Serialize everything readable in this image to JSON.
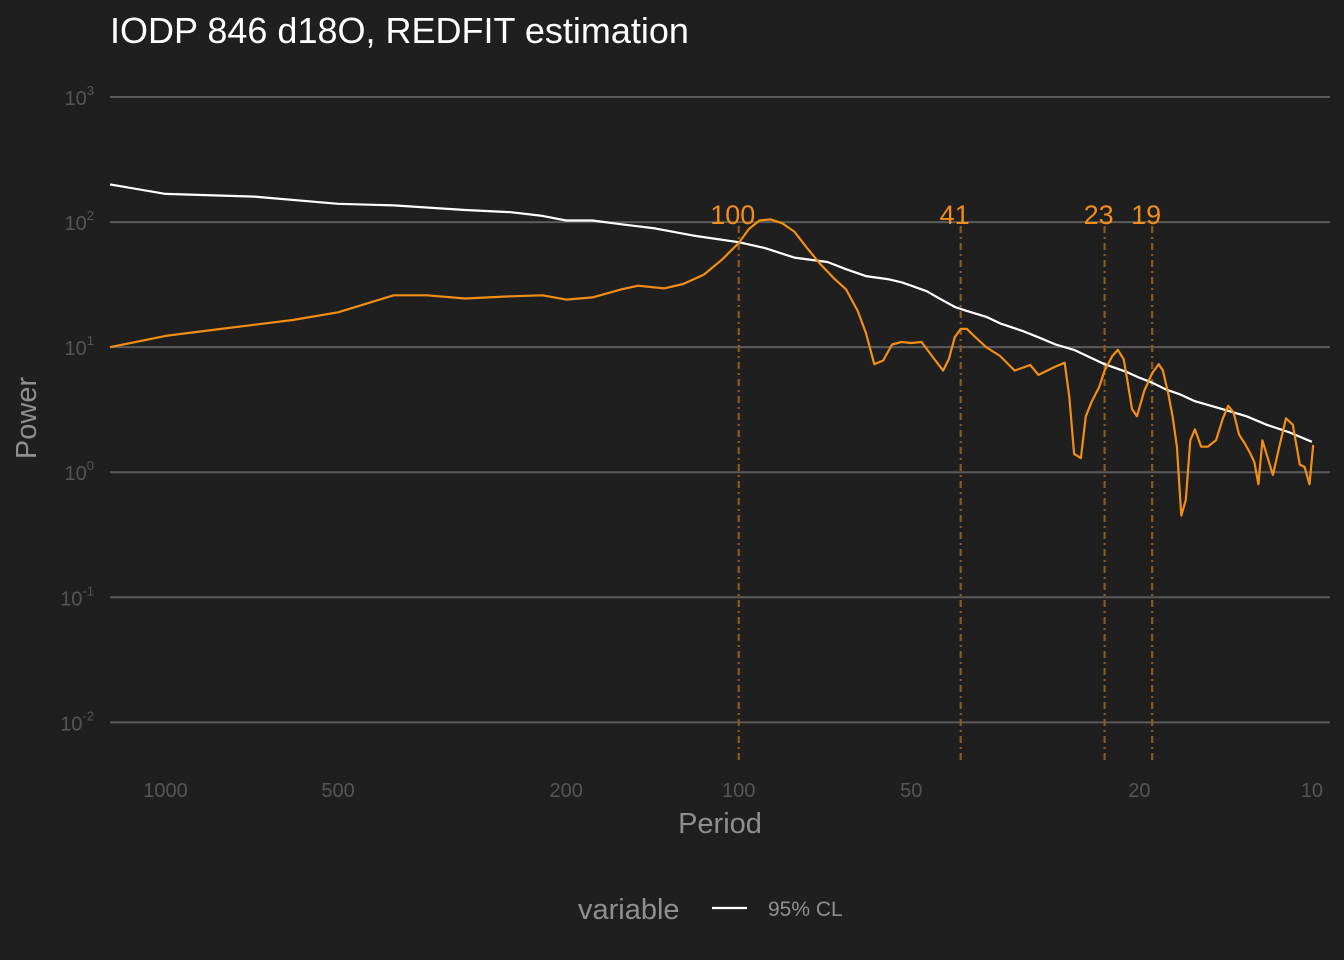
{
  "chart_data": {
    "type": "line",
    "title": "IODP 846 d18O, REDFIT estimation",
    "xlabel": "Period",
    "ylabel": "Power",
    "x_scale": "log-reversed",
    "y_scale": "log",
    "xlim": [
      1250,
      9.3
    ],
    "ylim": [
      0.005,
      1500
    ],
    "x_ticks": [
      {
        "value": 1000,
        "label": "1000"
      },
      {
        "value": 500,
        "label": "500"
      },
      {
        "value": 200,
        "label": "200"
      },
      {
        "value": 100,
        "label": "100"
      },
      {
        "value": 50,
        "label": "50"
      },
      {
        "value": 20,
        "label": "20"
      },
      {
        "value": 10,
        "label": "10"
      }
    ],
    "y_ticks": [
      {
        "value": 1000,
        "base": "10",
        "exp": "3"
      },
      {
        "value": 100,
        "base": "10",
        "exp": "2"
      },
      {
        "value": 10,
        "base": "10",
        "exp": "1"
      },
      {
        "value": 1,
        "base": "10",
        "exp": "0"
      },
      {
        "value": 0.1,
        "base": "10",
        "exp": "-1"
      },
      {
        "value": 0.01,
        "base": "10",
        "exp": "-2"
      }
    ],
    "grid": "horizontal major",
    "legend": {
      "position": "bottom",
      "title": "variable",
      "entries": [
        "95% CL"
      ]
    },
    "series": [
      {
        "name": "95% CL",
        "color": "#ffffff",
        "points": [
          [
            1250,
            200
          ],
          [
            1000,
            168
          ],
          [
            700,
            160
          ],
          [
            500,
            140
          ],
          [
            400,
            136
          ],
          [
            300,
            125
          ],
          [
            250,
            120
          ],
          [
            220,
            112
          ],
          [
            200,
            103
          ],
          [
            180,
            103
          ],
          [
            160,
            96
          ],
          [
            140,
            89
          ],
          [
            120,
            78
          ],
          [
            100,
            69
          ],
          [
            90,
            62
          ],
          [
            80,
            52
          ],
          [
            70,
            48
          ],
          [
            65,
            42
          ],
          [
            60,
            37
          ],
          [
            55,
            35
          ],
          [
            52,
            33
          ],
          [
            50,
            31
          ],
          [
            47,
            28
          ],
          [
            45,
            25
          ],
          [
            42,
            21
          ],
          [
            40,
            19.5
          ],
          [
            37,
            17.5
          ],
          [
            35,
            15.5
          ],
          [
            32,
            13.5
          ],
          [
            30,
            12
          ],
          [
            28,
            10.5
          ],
          [
            26,
            9.5
          ],
          [
            24,
            8
          ],
          [
            23,
            7.3
          ],
          [
            22,
            6.8
          ],
          [
            21,
            6.3
          ],
          [
            20,
            5.7
          ],
          [
            19,
            5.2
          ],
          [
            18,
            4.6
          ],
          [
            17,
            4.2
          ],
          [
            16,
            3.7
          ],
          [
            15,
            3.4
          ],
          [
            14,
            3.1
          ],
          [
            13,
            2.8
          ],
          [
            12,
            2.4
          ],
          [
            11,
            2.1
          ],
          [
            10,
            1.75
          ]
        ]
      },
      {
        "name": "",
        "color": "#f28e16",
        "points": [
          [
            1250,
            10
          ],
          [
            1000,
            12.3
          ],
          [
            800,
            14
          ],
          [
            600,
            16.5
          ],
          [
            500,
            19
          ],
          [
            450,
            22
          ],
          [
            400,
            26
          ],
          [
            350,
            26
          ],
          [
            300,
            24.5
          ],
          [
            250,
            25.5
          ],
          [
            220,
            26
          ],
          [
            200,
            24
          ],
          [
            180,
            25
          ],
          [
            160,
            29
          ],
          [
            150,
            31
          ],
          [
            135,
            29.5
          ],
          [
            125,
            32
          ],
          [
            115,
            38
          ],
          [
            107,
            50
          ],
          [
            100,
            68
          ],
          [
            96,
            88
          ],
          [
            92,
            103
          ],
          [
            88,
            105
          ],
          [
            84,
            98
          ],
          [
            80,
            84
          ],
          [
            76,
            62
          ],
          [
            72,
            46
          ],
          [
            68,
            35
          ],
          [
            65,
            29
          ],
          [
            62,
            19.5
          ],
          [
            60,
            13
          ],
          [
            58,
            7.3
          ],
          [
            56,
            7.8
          ],
          [
            54,
            10.5
          ],
          [
            52,
            11
          ],
          [
            50,
            10.8
          ],
          [
            48,
            11
          ],
          [
            46,
            8.5
          ],
          [
            44,
            6.5
          ],
          [
            43,
            8
          ],
          [
            42,
            12
          ],
          [
            41,
            14
          ],
          [
            40,
            14
          ],
          [
            39,
            12.5
          ],
          [
            37,
            10
          ],
          [
            35,
            8.5
          ],
          [
            33,
            6.5
          ],
          [
            31,
            7.2
          ],
          [
            30,
            6
          ],
          [
            28,
            7
          ],
          [
            27,
            7.5
          ],
          [
            26.5,
            4
          ],
          [
            26,
            1.4
          ],
          [
            25.3,
            1.3
          ],
          [
            24.8,
            2.8
          ],
          [
            24.2,
            3.7
          ],
          [
            23.5,
            4.8
          ],
          [
            23,
            6.5
          ],
          [
            22.3,
            8.5
          ],
          [
            21.8,
            9.5
          ],
          [
            21.3,
            8
          ],
          [
            21,
            5.5
          ],
          [
            20.6,
            3.2
          ],
          [
            20.2,
            2.8
          ],
          [
            19.6,
            4.5
          ],
          [
            19,
            6.2
          ],
          [
            18.5,
            7.3
          ],
          [
            18.2,
            6.5
          ],
          [
            17.8,
            4.2
          ],
          [
            17.5,
            2.8
          ],
          [
            17.2,
            1.6
          ],
          [
            16.9,
            0.45
          ],
          [
            16.6,
            0.6
          ],
          [
            16.3,
            1.8
          ],
          [
            16,
            2.2
          ],
          [
            15.6,
            1.6
          ],
          [
            15.2,
            1.6
          ],
          [
            14.7,
            1.8
          ],
          [
            14.3,
            2.7
          ],
          [
            14,
            3.4
          ],
          [
            13.7,
            3
          ],
          [
            13.4,
            2
          ],
          [
            13.1,
            1.7
          ],
          [
            12.8,
            1.4
          ],
          [
            12.6,
            1.2
          ],
          [
            12.4,
            0.8
          ],
          [
            12.2,
            1.8
          ],
          [
            12,
            1.4
          ],
          [
            11.7,
            0.95
          ],
          [
            11.4,
            1.6
          ],
          [
            11.1,
            2.7
          ],
          [
            10.8,
            2.4
          ],
          [
            10.5,
            1.15
          ],
          [
            10.3,
            1.1
          ],
          [
            10.1,
            0.8
          ],
          [
            9.95,
            1.65
          ]
        ]
      }
    ],
    "peak_markers": [
      {
        "period": 100,
        "label": "100"
      },
      {
        "period": 41,
        "label": "41"
      },
      {
        "period": 23,
        "label": "23"
      },
      {
        "period": 19,
        "label": "19"
      }
    ]
  }
}
